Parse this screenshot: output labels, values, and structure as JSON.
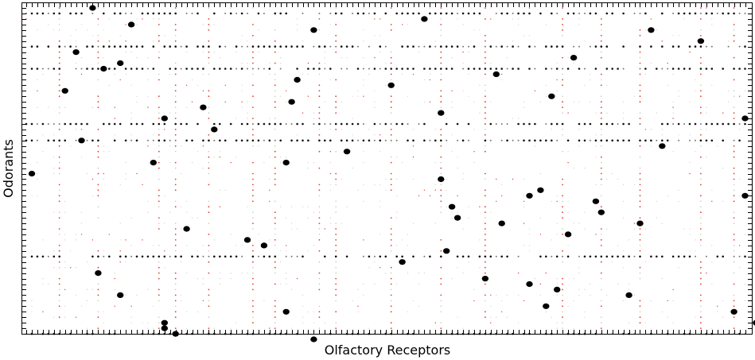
{
  "chart_data": {
    "type": "scatter",
    "title": "",
    "xlabel": "Olfactory Receptors",
    "ylabel": "Odorants",
    "xlim": [
      0,
      130
    ],
    "ylim": [
      0,
      59
    ],
    "y_inverted": true,
    "n_receptors": 130,
    "n_odorants": 59,
    "grid": false,
    "tick_labels": false,
    "colors": {
      "strong": "#000000",
      "weak": "#e04030",
      "faint": "#999999",
      "axis": "#000000",
      "background": "#ffffff"
    },
    "strong_responses": [
      [
        12,
        0
      ],
      [
        72,
        2
      ],
      [
        19,
        3
      ],
      [
        52,
        4
      ],
      [
        113,
        4
      ],
      [
        122,
        6
      ],
      [
        9,
        8
      ],
      [
        17,
        10
      ],
      [
        99,
        9
      ],
      [
        14,
        11
      ],
      [
        85,
        12
      ],
      [
        49,
        13
      ],
      [
        66,
        14
      ],
      [
        7,
        15
      ],
      [
        95,
        16
      ],
      [
        48,
        17
      ],
      [
        32,
        18
      ],
      [
        75,
        19
      ],
      [
        25,
        20
      ],
      [
        130,
        20
      ],
      [
        34,
        22
      ],
      [
        10,
        24
      ],
      [
        115,
        25
      ],
      [
        58,
        26
      ],
      [
        23,
        28
      ],
      [
        47,
        28
      ],
      [
        1,
        30
      ],
      [
        75,
        31
      ],
      [
        93,
        33
      ],
      [
        91,
        34
      ],
      [
        130,
        34
      ],
      [
        103,
        35
      ],
      [
        77,
        36
      ],
      [
        104,
        37
      ],
      [
        78,
        38
      ],
      [
        86,
        39
      ],
      [
        111,
        39
      ],
      [
        29,
        40
      ],
      [
        98,
        41
      ],
      [
        40,
        42
      ],
      [
        43,
        43
      ],
      [
        76,
        44
      ],
      [
        68,
        46
      ],
      [
        13,
        48
      ],
      [
        83,
        49
      ],
      [
        91,
        50
      ],
      [
        96,
        51
      ],
      [
        17,
        52
      ],
      [
        109,
        52
      ],
      [
        94,
        54
      ],
      [
        47,
        55
      ],
      [
        128,
        55
      ],
      [
        132,
        57
      ],
      [
        25,
        57
      ],
      [
        25,
        58
      ],
      [
        27,
        59
      ],
      [
        52,
        60
      ]
    ],
    "dense_rows": [
      1,
      7,
      11,
      21,
      24,
      45,
      59
    ],
    "dense_cols": [
      6,
      13,
      24,
      27,
      33,
      41,
      45,
      53,
      56,
      66,
      75,
      83,
      97,
      104,
      111,
      122,
      128
    ]
  }
}
